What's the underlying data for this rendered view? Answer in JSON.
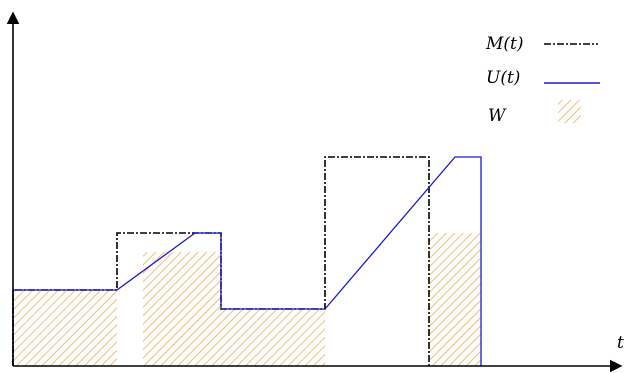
{
  "chart_data": {
    "type": "step",
    "x_axis_label": "t",
    "legend": [
      {
        "key": "M",
        "label": "M(t)",
        "style": "dash-dot",
        "color": "#000000"
      },
      {
        "key": "U",
        "label": "U(t)",
        "style": "solid",
        "color": "#1a1ad6"
      },
      {
        "key": "W",
        "label": "W",
        "style": "hatched-fill",
        "color": "#f0a040"
      }
    ],
    "M_steps": [
      {
        "from": 0,
        "to": 1,
        "level": 1.0
      },
      {
        "from": 1,
        "to": 2,
        "level": 1.75
      },
      {
        "from": 2,
        "to": 3,
        "level": 0.75
      },
      {
        "from": 3,
        "to": 4,
        "level": 2.75
      }
    ],
    "U_points": [
      {
        "t": 0,
        "u": 1.0
      },
      {
        "t": 1,
        "u": 1.0
      },
      {
        "t": 1.75,
        "u": 1.75
      },
      {
        "t": 2,
        "u": 1.75
      },
      {
        "t": 2,
        "u": 0.75
      },
      {
        "t": 3,
        "u": 0.75
      },
      {
        "t": 4.25,
        "u": 2.75
      },
      {
        "t": 4.5,
        "u": 2.75
      }
    ],
    "W_blocks": [
      {
        "from": 0,
        "to": 1,
        "height": 1.0
      },
      {
        "from": 1.25,
        "to": 2,
        "height": 1.5
      },
      {
        "from": 2,
        "to": 3,
        "height": 0.75
      },
      {
        "from": 4,
        "to": 4.5,
        "height": 1.75
      }
    ],
    "colors": {
      "axis": "#000000",
      "M": "#000000",
      "U": "#1a1ad6",
      "W": "#f0a040"
    }
  }
}
